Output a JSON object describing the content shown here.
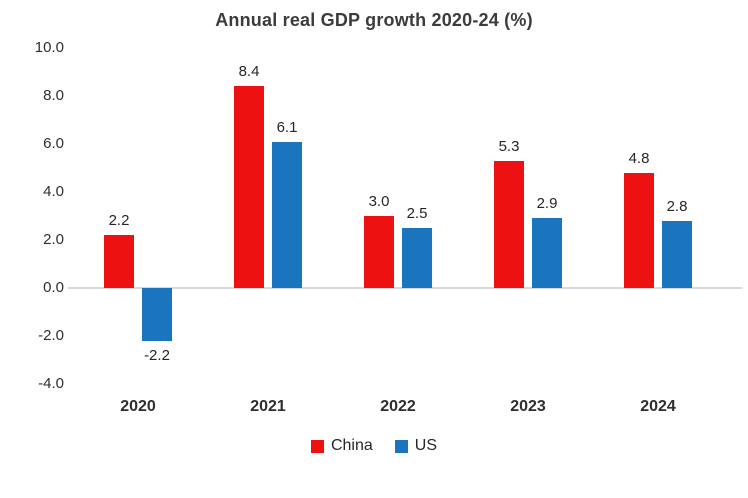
{
  "title": "Annual real GDP growth 2020-24 (%)",
  "chart_data": {
    "type": "bar",
    "title": "Annual real GDP growth 2020-24 (%)",
    "categories": [
      "2020",
      "2021",
      "2022",
      "2023",
      "2024"
    ],
    "series": [
      {
        "name": "China",
        "color": "#ee1111",
        "values": [
          2.2,
          8.4,
          3.0,
          5.3,
          4.8
        ]
      },
      {
        "name": "US",
        "color": "#1b75be",
        "values": [
          -2.2,
          6.1,
          2.5,
          2.9,
          2.8
        ]
      }
    ],
    "xlabel": "",
    "ylabel": "",
    "ylim": [
      -4.0,
      10.0
    ],
    "ytick_step": 2.0,
    "yticks": [
      "10.0",
      "8.0",
      "6.0",
      "4.0",
      "2.0",
      "0.0",
      "-2.0",
      "-4.0"
    ],
    "grid": false,
    "data_labels": true,
    "legend_position": "bottom"
  },
  "colors": {
    "background": "#ffffff",
    "title_text": "#3c3c3c",
    "axis_text": "#2e2e2e",
    "value_label_text": "#262626",
    "axis_line": "#d9d9d9"
  }
}
